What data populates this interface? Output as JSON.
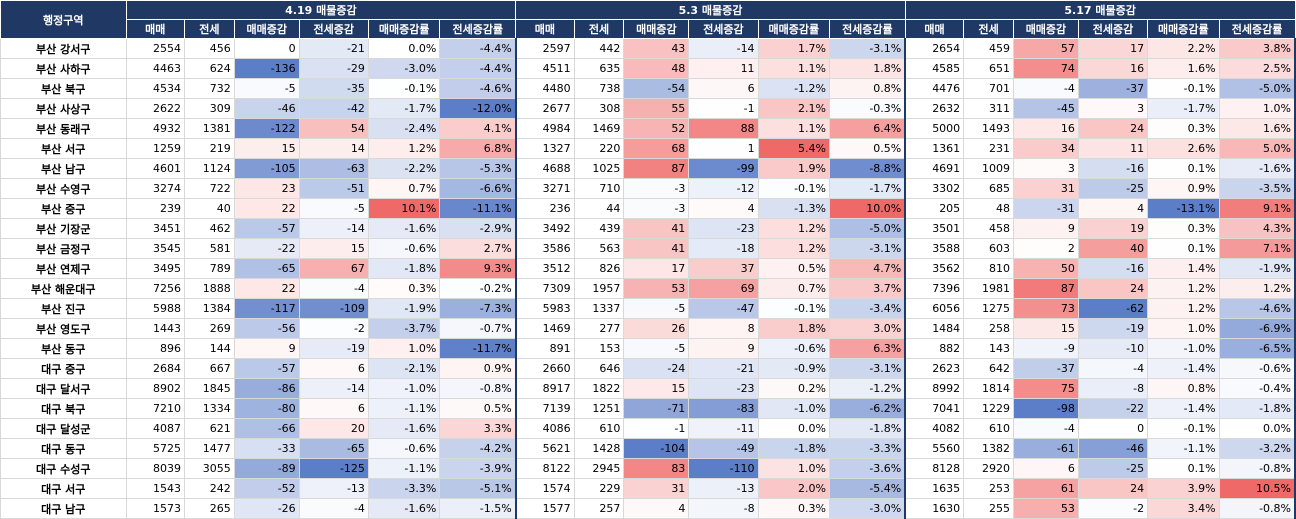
{
  "header": {
    "region_label": "행정구역",
    "groups": [
      "4.19 매물증감",
      "5.3 매물증감",
      "5.17 매물증감"
    ],
    "subcolumns": [
      "매매",
      "전세",
      "매매증감",
      "전세증감",
      "매매증감률",
      "전세증감률"
    ]
  },
  "rows": [
    {
      "region": "부산 강서구",
      "g": [
        [
          2554,
          456,
          0,
          -21,
          "0.0%",
          "-4.4%"
        ],
        [
          2597,
          442,
          43,
          -14,
          "1.7%",
          "-3.1%"
        ],
        [
          2654,
          459,
          57,
          17,
          "2.2%",
          "3.8%"
        ]
      ]
    },
    {
      "region": "부산 사하구",
      "g": [
        [
          4463,
          624,
          -136,
          -29,
          "-3.0%",
          "-4.4%"
        ],
        [
          4511,
          635,
          48,
          11,
          "1.1%",
          "1.8%"
        ],
        [
          4585,
          651,
          74,
          16,
          "1.6%",
          "2.5%"
        ]
      ]
    },
    {
      "region": "부산 북구",
      "g": [
        [
          4534,
          732,
          -5,
          -35,
          "-0.1%",
          "-4.6%"
        ],
        [
          4480,
          738,
          -54,
          6,
          "-1.2%",
          "0.8%"
        ],
        [
          4476,
          701,
          -4,
          -37,
          "-0.1%",
          "-5.0%"
        ]
      ]
    },
    {
      "region": "부산 사상구",
      "g": [
        [
          2622,
          309,
          -46,
          -42,
          "-1.7%",
          "-12.0%"
        ],
        [
          2677,
          308,
          55,
          -1,
          "2.1%",
          "-0.3%"
        ],
        [
          2632,
          311,
          -45,
          3,
          "-1.7%",
          "1.0%"
        ]
      ]
    },
    {
      "region": "부산 동래구",
      "g": [
        [
          4932,
          1381,
          -122,
          54,
          "-2.4%",
          "4.1%"
        ],
        [
          4984,
          1469,
          52,
          88,
          "1.1%",
          "6.4%"
        ],
        [
          5000,
          1493,
          16,
          24,
          "0.3%",
          "1.6%"
        ]
      ]
    },
    {
      "region": "부산 서구",
      "g": [
        [
          1259,
          219,
          15,
          14,
          "1.2%",
          "6.8%"
        ],
        [
          1327,
          220,
          68,
          1,
          "5.4%",
          "0.5%"
        ],
        [
          1361,
          231,
          34,
          11,
          "2.6%",
          "5.0%"
        ]
      ]
    },
    {
      "region": "부산 남구",
      "g": [
        [
          4601,
          1124,
          -105,
          -63,
          "-2.2%",
          "-5.3%"
        ],
        [
          4688,
          1025,
          87,
          -99,
          "1.9%",
          "-8.8%"
        ],
        [
          4691,
          1009,
          3,
          -16,
          "0.1%",
          "-1.6%"
        ]
      ]
    },
    {
      "region": "부산 수영구",
      "g": [
        [
          3274,
          722,
          23,
          -51,
          "0.7%",
          "-6.6%"
        ],
        [
          3271,
          710,
          -3,
          -12,
          "-0.1%",
          "-1.7%"
        ],
        [
          3302,
          685,
          31,
          -25,
          "0.9%",
          "-3.5%"
        ]
      ]
    },
    {
      "region": "부산 중구",
      "g": [
        [
          239,
          40,
          22,
          -5,
          "10.1%",
          "-11.1%"
        ],
        [
          236,
          44,
          -3,
          4,
          "-1.3%",
          "10.0%"
        ],
        [
          205,
          48,
          -31,
          4,
          "-13.1%",
          "9.1%"
        ]
      ]
    },
    {
      "region": "부산 기장군",
      "g": [
        [
          3451,
          462,
          -57,
          -14,
          "-1.6%",
          "-2.9%"
        ],
        [
          3492,
          439,
          41,
          -23,
          "1.2%",
          "-5.0%"
        ],
        [
          3501,
          458,
          9,
          19,
          "0.3%",
          "4.3%"
        ]
      ]
    },
    {
      "region": "부산 금정구",
      "g": [
        [
          3545,
          581,
          -22,
          15,
          "-0.6%",
          "2.7%"
        ],
        [
          3586,
          563,
          41,
          -18,
          "1.2%",
          "-3.1%"
        ],
        [
          3588,
          603,
          2,
          40,
          "0.1%",
          "7.1%"
        ]
      ]
    },
    {
      "region": "부산 연제구",
      "g": [
        [
          3495,
          789,
          -65,
          67,
          "-1.8%",
          "9.3%"
        ],
        [
          3512,
          826,
          17,
          37,
          "0.5%",
          "4.7%"
        ],
        [
          3562,
          810,
          50,
          -16,
          "1.4%",
          "-1.9%"
        ]
      ]
    },
    {
      "region": "부산 해운대구",
      "g": [
        [
          7256,
          1888,
          22,
          -4,
          "0.3%",
          "-0.2%"
        ],
        [
          7309,
          1957,
          53,
          69,
          "0.7%",
          "3.7%"
        ],
        [
          7396,
          1981,
          87,
          24,
          "1.2%",
          "1.2%"
        ]
      ]
    },
    {
      "region": "부산 진구",
      "g": [
        [
          5988,
          1384,
          -117,
          -109,
          "-1.9%",
          "-7.3%"
        ],
        [
          5983,
          1337,
          -5,
          -47,
          "-0.1%",
          "-3.4%"
        ],
        [
          6056,
          1275,
          73,
          -62,
          "1.2%",
          "-4.6%"
        ]
      ]
    },
    {
      "region": "부산 영도구",
      "g": [
        [
          1443,
          269,
          -56,
          -2,
          "-3.7%",
          "-0.7%"
        ],
        [
          1469,
          277,
          26,
          8,
          "1.8%",
          "3.0%"
        ],
        [
          1484,
          258,
          15,
          -19,
          "1.0%",
          "-6.9%"
        ]
      ]
    },
    {
      "region": "부산 동구",
      "g": [
        [
          896,
          144,
          9,
          -19,
          "1.0%",
          "-11.7%"
        ],
        [
          891,
          153,
          -5,
          9,
          "-0.6%",
          "6.3%"
        ],
        [
          882,
          143,
          -9,
          -10,
          "-1.0%",
          "-6.5%"
        ]
      ]
    },
    {
      "region": "대구 중구",
      "g": [
        [
          2684,
          667,
          -57,
          6,
          "-2.1%",
          "0.9%"
        ],
        [
          2660,
          646,
          -24,
          -21,
          "-0.9%",
          "-3.1%"
        ],
        [
          2623,
          642,
          -37,
          -4,
          "-1.4%",
          "-0.6%"
        ]
      ]
    },
    {
      "region": "대구 달서구",
      "g": [
        [
          8902,
          1845,
          -86,
          -14,
          "-1.0%",
          "-0.8%"
        ],
        [
          8917,
          1822,
          15,
          -23,
          "0.2%",
          "-1.2%"
        ],
        [
          8992,
          1814,
          75,
          -8,
          "0.8%",
          "-0.4%"
        ]
      ]
    },
    {
      "region": "대구 북구",
      "g": [
        [
          7210,
          1334,
          -80,
          6,
          "-1.1%",
          "0.5%"
        ],
        [
          7139,
          1251,
          -71,
          -83,
          "-1.0%",
          "-6.2%"
        ],
        [
          7041,
          1229,
          -98,
          -22,
          "-1.4%",
          "-1.8%"
        ]
      ]
    },
    {
      "region": "대구 달성군",
      "g": [
        [
          4087,
          621,
          -66,
          20,
          "-1.6%",
          "3.3%"
        ],
        [
          4086,
          610,
          -1,
          -11,
          "0.0%",
          "-1.8%"
        ],
        [
          4082,
          610,
          -4,
          0,
          "-0.1%",
          "0.0%"
        ]
      ]
    },
    {
      "region": "대구 동구",
      "g": [
        [
          5725,
          1477,
          -33,
          -65,
          "-0.6%",
          "-4.2%"
        ],
        [
          5621,
          1428,
          -104,
          -49,
          "-1.8%",
          "-3.3%"
        ],
        [
          5560,
          1382,
          -61,
          -46,
          "-1.1%",
          "-3.2%"
        ]
      ]
    },
    {
      "region": "대구 수성구",
      "g": [
        [
          8039,
          3055,
          -89,
          -125,
          "-1.1%",
          "-3.9%"
        ],
        [
          8122,
          2945,
          83,
          -110,
          "1.0%",
          "-3.6%"
        ],
        [
          8128,
          2920,
          6,
          -25,
          "0.1%",
          "-0.8%"
        ]
      ]
    },
    {
      "region": "대구 서구",
      "g": [
        [
          1543,
          242,
          -52,
          -13,
          "-3.3%",
          "-5.1%"
        ],
        [
          1574,
          229,
          31,
          -13,
          "2.0%",
          "-5.4%"
        ],
        [
          1635,
          253,
          61,
          24,
          "3.9%",
          "10.5%"
        ]
      ]
    },
    {
      "region": "대구 남구",
      "g": [
        [
          1573,
          265,
          -26,
          -4,
          "-1.6%",
          "-1.5%"
        ],
        [
          1577,
          257,
          4,
          -8,
          "0.3%",
          "-3.0%"
        ],
        [
          1630,
          255,
          53,
          -2,
          "3.4%",
          "-0.8%"
        ]
      ]
    }
  ]
}
